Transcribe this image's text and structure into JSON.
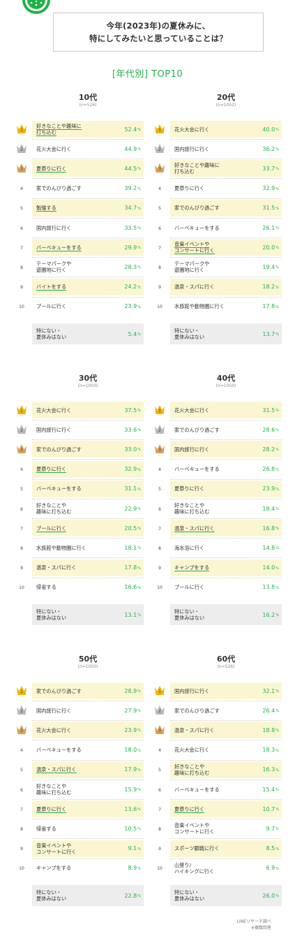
{
  "header": {
    "line1": "今年(2023年)の夏休みに、",
    "line2": "特にしてみたいと思っていることは？"
  },
  "subtitle": "[年代別] TOP10",
  "chart_data": [
    {
      "type": "table",
      "title": "10代",
      "n": "(n=526)",
      "rows": [
        {
          "rank": "1",
          "label": "好きなことや趣味に打ち込む",
          "value": 52.4
        },
        {
          "rank": "2",
          "label": "花火大会に行く",
          "value": 44.9
        },
        {
          "rank": "3",
          "label": "夏祭りに行く",
          "value": 44.5
        },
        {
          "rank": "4",
          "label": "家でのんびり過ごす",
          "value": 39.2
        },
        {
          "rank": "5",
          "label": "勉強する",
          "value": 34.7
        },
        {
          "rank": "6",
          "label": "国内旅行に行く",
          "value": 33.5
        },
        {
          "rank": "7",
          "label": "バーベキューをする",
          "value": 29.9
        },
        {
          "rank": "8",
          "label": "テーマパークや遊園地に行く",
          "value": 28.3
        },
        {
          "rank": "9",
          "label": "バイトをする",
          "value": 24.2
        },
        {
          "rank": "10",
          "label": "プールに行く",
          "value": 23.9
        },
        {
          "rank": "",
          "label": "特にない・夏休みはない",
          "value": 5.4
        }
      ]
    },
    {
      "type": "table",
      "title": "20代",
      "n": "(n=1052)",
      "rows": [
        {
          "rank": "1",
          "label": "花火大会に行く",
          "value": 40.0
        },
        {
          "rank": "2",
          "label": "国内旅行に行く",
          "value": 36.2
        },
        {
          "rank": "3",
          "label": "好きなことや趣味に打ち込む",
          "value": 33.7
        },
        {
          "rank": "4",
          "label": "夏祭りに行く",
          "value": 32.9
        },
        {
          "rank": "5",
          "label": "家でのんびり過ごす",
          "value": 31.5
        },
        {
          "rank": "6",
          "label": "バーベキューをする",
          "value": 26.1
        },
        {
          "rank": "7",
          "label": "音楽イベントやコンサートに行く",
          "value": 20.0
        },
        {
          "rank": "8",
          "label": "テーマパークや遊園地に行く",
          "value": 19.4
        },
        {
          "rank": "9",
          "label": "温泉・スパに行く",
          "value": 18.2
        },
        {
          "rank": "10",
          "label": "水族館や動物園に行く",
          "value": 17.8
        },
        {
          "rank": "",
          "label": "特にない・夏休みはない",
          "value": 13.7
        }
      ]
    },
    {
      "type": "table",
      "title": "30代",
      "n": "(n=1050)",
      "rows": [
        {
          "rank": "1",
          "label": "花火大会に行く",
          "value": 37.5
        },
        {
          "rank": "2",
          "label": "国内旅行に行く",
          "value": 33.6
        },
        {
          "rank": "3",
          "label": "家でのんびり過ごす",
          "value": 33.0
        },
        {
          "rank": "4",
          "label": "夏祭りに行く",
          "value": 32.9
        },
        {
          "rank": "5",
          "label": "バーベキューをする",
          "value": 31.1
        },
        {
          "rank": "6",
          "label": "好きなことや趣味に打ち込む",
          "value": 22.9
        },
        {
          "rank": "7",
          "label": "プールに行く",
          "value": 20.5
        },
        {
          "rank": "8",
          "label": "水族館や動物園に行く",
          "value": 18.1
        },
        {
          "rank": "9",
          "label": "温泉・スパに行く",
          "value": 17.8
        },
        {
          "rank": "10",
          "label": "帰省する",
          "value": 16.6
        },
        {
          "rank": "",
          "label": "特にない・夏休みはない",
          "value": 13.1
        }
      ]
    },
    {
      "type": "table",
      "title": "40代",
      "n": "(n=1050)",
      "rows": [
        {
          "rank": "1",
          "label": "花火大会に行く",
          "value": 31.5
        },
        {
          "rank": "2",
          "label": "家でのんびり過ごす",
          "value": 28.6
        },
        {
          "rank": "3",
          "label": "国内旅行に行く",
          "value": 28.2
        },
        {
          "rank": "4",
          "label": "バーベキューをする",
          "value": 26.8
        },
        {
          "rank": "5",
          "label": "夏祭りに行く",
          "value": 23.9
        },
        {
          "rank": "6",
          "label": "好きなことや趣味に打ち込む",
          "value": 18.4
        },
        {
          "rank": "7",
          "label": "温泉・スパに行く",
          "value": 16.8
        },
        {
          "rank": "8",
          "label": "海水浴に行く",
          "value": 14.8
        },
        {
          "rank": "9",
          "label": "キャンプをする",
          "value": 14.0
        },
        {
          "rank": "10",
          "label": "プールに行く",
          "value": 13.8
        },
        {
          "rank": "",
          "label": "特にない・夏休みはない",
          "value": 16.2
        }
      ]
    },
    {
      "type": "table",
      "title": "50代",
      "n": "(n=1050)",
      "rows": [
        {
          "rank": "1",
          "label": "家でのんびり過ごす",
          "value": 28.9
        },
        {
          "rank": "2",
          "label": "国内旅行に行く",
          "value": 27.9
        },
        {
          "rank": "3",
          "label": "花火大会に行く",
          "value": 23.9
        },
        {
          "rank": "4",
          "label": "バーベキューをする",
          "value": 18.0
        },
        {
          "rank": "5",
          "label": "温泉・スパに行く",
          "value": 17.9
        },
        {
          "rank": "6",
          "label": "好きなことや趣味に打ち込む",
          "value": 15.9
        },
        {
          "rank": "7",
          "label": "夏祭りに行く",
          "value": 13.6
        },
        {
          "rank": "8",
          "label": "帰省する",
          "value": 10.5
        },
        {
          "rank": "9",
          "label": "音楽イベントやコンサートに行く",
          "value": 9.1
        },
        {
          "rank": "10",
          "label": "キャンプをする",
          "value": 8.9
        },
        {
          "rank": "",
          "label": "特にない・夏休みはない",
          "value": 22.8
        }
      ]
    },
    {
      "type": "table",
      "title": "60代",
      "n": "(n=526)",
      "rows": [
        {
          "rank": "1",
          "label": "国内旅行に行く",
          "value": 32.1
        },
        {
          "rank": "2",
          "label": "家でのんびり過ごす",
          "value": 26.4
        },
        {
          "rank": "3",
          "label": "温泉・スパに行く",
          "value": 18.8
        },
        {
          "rank": "4",
          "label": "花火大会に行く",
          "value": 18.3
        },
        {
          "rank": "5",
          "label": "好きなことや趣味に打ち込む",
          "value": 16.3
        },
        {
          "rank": "6",
          "label": "バーベキューをする",
          "value": 15.4
        },
        {
          "rank": "7",
          "label": "夏祭りに行く",
          "value": 10.7
        },
        {
          "rank": "8",
          "label": "音楽イベントやコンサートに行く",
          "value": 9.7
        },
        {
          "rank": "9",
          "label": "スポーツ観戦に行く",
          "value": 8.5
        },
        {
          "rank": "10",
          "label": "山登り/ハイキングに行く",
          "value": 6.9
        },
        {
          "rank": "",
          "label": "特にない・夏休みはない",
          "value": 26.0
        }
      ]
    }
  ],
  "display": {
    "label_lines": [
      [
        [
          "好きなことや趣味に",
          "打ち込む"
        ],
        [
          "花火大会に行く"
        ],
        [
          "夏祭りに行く"
        ],
        [
          "家でのんびり過ごす"
        ],
        [
          "勉強する"
        ],
        [
          "国内旅行に行く"
        ],
        [
          "バーベキューをする"
        ],
        [
          "テーマパークや",
          "遊園地に行く"
        ],
        [
          "バイトをする"
        ],
        [
          "プールに行く"
        ],
        [
          "特にない・",
          "夏休みはない"
        ]
      ],
      [
        [
          "花火大会に行く"
        ],
        [
          "国内旅行に行く"
        ],
        [
          "好きなことや趣味に",
          "打ち込む"
        ],
        [
          "夏祭りに行く"
        ],
        [
          "家でのんびり過ごす"
        ],
        [
          "バーベキューをする"
        ],
        [
          "音楽イベントや",
          "コンサートに行く"
        ],
        [
          "テーマパークや",
          "遊園地に行く"
        ],
        [
          "温泉・スパに行く"
        ],
        [
          "水族館や動物園に行く"
        ],
        [
          "特にない・",
          "夏休みはない"
        ]
      ],
      [
        [
          "花火大会に行く"
        ],
        [
          "国内旅行に行く"
        ],
        [
          "家でのんびり過ごす"
        ],
        [
          "夏祭りに行く"
        ],
        [
          "バーベキューをする"
        ],
        [
          "好きなことや",
          "趣味に打ち込む"
        ],
        [
          "プールに行く"
        ],
        [
          "水族館や動物園に行く"
        ],
        [
          "温泉・スパに行く"
        ],
        [
          "帰省する"
        ],
        [
          "特にない・",
          "夏休みはない"
        ]
      ],
      [
        [
          "花火大会に行く"
        ],
        [
          "家でのんびり過ごす"
        ],
        [
          "国内旅行に行く"
        ],
        [
          "バーベキューをする"
        ],
        [
          "夏祭りに行く"
        ],
        [
          "好きなことや",
          "趣味に打ち込む"
        ],
        [
          "温泉・スパに行く"
        ],
        [
          "海水浴に行く"
        ],
        [
          "キャンプをする"
        ],
        [
          "プールに行く"
        ],
        [
          "特にない・",
          "夏休みはない"
        ]
      ],
      [
        [
          "家でのんびり過ごす"
        ],
        [
          "国内旅行に行く"
        ],
        [
          "花火大会に行く"
        ],
        [
          "バーベキューをする"
        ],
        [
          "温泉・スパに行く"
        ],
        [
          "好きなことや",
          "趣味に打ち込む"
        ],
        [
          "夏祭りに行く"
        ],
        [
          "帰省する"
        ],
        [
          "音楽イベントや",
          "コンサートに行く"
        ],
        [
          "キャンプをする"
        ],
        [
          "特にない・",
          "夏休みはない"
        ]
      ],
      [
        [
          "国内旅行に行く"
        ],
        [
          "家でのんびり過ごす"
        ],
        [
          "温泉・スパに行く"
        ],
        [
          "花火大会に行く"
        ],
        [
          "好きなことや",
          "趣味に打ち込む"
        ],
        [
          "バーベキューをする"
        ],
        [
          "夏祭りに行く"
        ],
        [
          "音楽イベントや",
          "コンサートに行く"
        ],
        [
          "スポーツ観戦に行く"
        ],
        [
          "山登り/",
          "ハイキングに行く"
        ],
        [
          "特にない・",
          "夏休みはない"
        ]
      ]
    ],
    "highlighted_rows": [
      [
        0,
        2,
        4,
        6,
        8
      ],
      [
        0,
        2,
        4,
        6,
        8
      ],
      [
        0,
        2,
        3,
        4,
        6,
        8
      ],
      [
        0,
        2,
        4,
        6,
        8
      ],
      [
        0,
        2,
        4,
        6,
        8
      ],
      [
        0,
        2,
        4,
        6,
        8
      ]
    ],
    "underlined_rows": [
      [
        0,
        2,
        4,
        6,
        8
      ],
      [
        6
      ],
      [
        3,
        6
      ],
      [
        6,
        8
      ],
      [
        4,
        6
      ],
      [
        6
      ]
    ],
    "percent_sign": "%",
    "colors": {
      "accent": "#21b24a",
      "highlight": "#fbf6d2",
      "other_row": "#ededed",
      "gold": "#f0b400",
      "silver": "#b8b8b8",
      "bronze": "#d9a058"
    }
  },
  "footer": {
    "source": "LINEリサーチ調べ",
    "note": "※複数回答"
  }
}
